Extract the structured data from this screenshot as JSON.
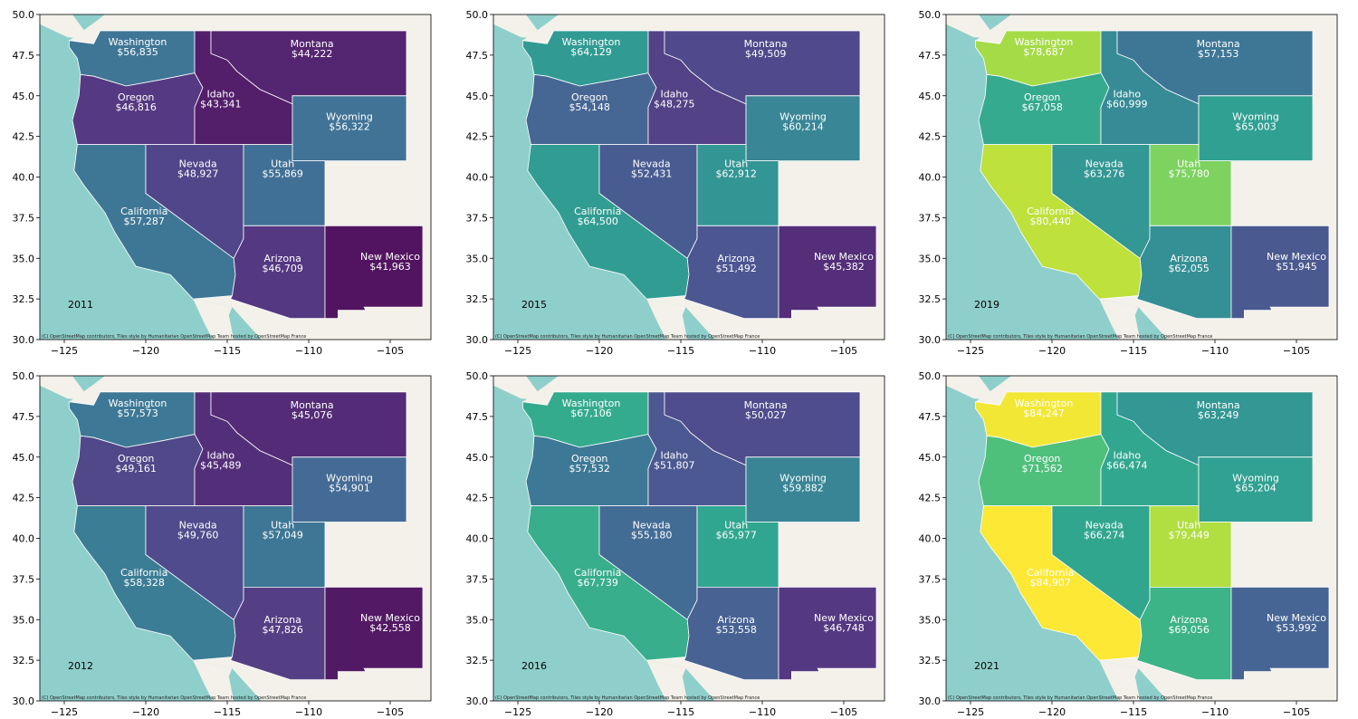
{
  "attribution": "(C) OpenStreetMap contributors, Tiles style by Humanitarian OpenStreetMap Team hosted by OpenStreetMap France",
  "axes": {
    "x_ticks": [
      "−125",
      "−120",
      "−115",
      "−110",
      "−105"
    ],
    "y_ticks": [
      "50.0",
      "47.5",
      "45.0",
      "42.5",
      "40.0",
      "37.5",
      "35.0",
      "32.5",
      "30.0"
    ]
  },
  "colors": {
    "ocean": "#8fcfcb",
    "land": "#f3f1ea",
    "border": "#ffffff",
    "viridis_stops": [
      "#440154",
      "#482878",
      "#3e4989",
      "#31688e",
      "#26828e",
      "#1f9e89",
      "#35b779",
      "#6ece58",
      "#b5de2b",
      "#fde725"
    ],
    "value_range": [
      41963,
      84907
    ]
  },
  "chart_data": {
    "type": "choropleth-map",
    "layout": "2 rows x 3 columns",
    "metric": "median household income (USD)",
    "lon_range": [
      -126.5,
      -102.5
    ],
    "lat_range": [
      30.0,
      50.0
    ],
    "panels": [
      {
        "year": "2011",
        "states": [
          {
            "name": "Washington",
            "label": "$56,835",
            "value": 56835
          },
          {
            "name": "Oregon",
            "label": "$46,816",
            "value": 46816
          },
          {
            "name": "Idaho",
            "label": "$43,341",
            "value": 43341
          },
          {
            "name": "Montana",
            "label": "$44,222",
            "value": 44222
          },
          {
            "name": "Wyoming",
            "label": "$56,322",
            "value": 56322
          },
          {
            "name": "California",
            "label": "$57,287",
            "value": 57287
          },
          {
            "name": "Nevada",
            "label": "$48,927",
            "value": 48927
          },
          {
            "name": "Utah",
            "label": "$55,869",
            "value": 55869
          },
          {
            "name": "Arizona",
            "label": "$46,709",
            "value": 46709
          },
          {
            "name": "New Mexico",
            "label": "$41,963",
            "value": 41963
          }
        ]
      },
      {
        "year": "2015",
        "states": [
          {
            "name": "Washington",
            "label": "$64,129",
            "value": 64129
          },
          {
            "name": "Oregon",
            "label": "$54,148",
            "value": 54148
          },
          {
            "name": "Idaho",
            "label": "$48,275",
            "value": 48275
          },
          {
            "name": "Montana",
            "label": "$49,509",
            "value": 49509
          },
          {
            "name": "Wyoming",
            "label": "$60,214",
            "value": 60214
          },
          {
            "name": "California",
            "label": "$64,500",
            "value": 64500
          },
          {
            "name": "Nevada",
            "label": "$52,431",
            "value": 52431
          },
          {
            "name": "Utah",
            "label": "$62,912",
            "value": 62912
          },
          {
            "name": "Arizona",
            "label": "$51,492",
            "value": 51492
          },
          {
            "name": "New Mexico",
            "label": "$45,382",
            "value": 45382
          }
        ]
      },
      {
        "year": "2019",
        "states": [
          {
            "name": "Washington",
            "label": "$78,687",
            "value": 78687
          },
          {
            "name": "Oregon",
            "label": "$67,058",
            "value": 67058
          },
          {
            "name": "Idaho",
            "label": "$60,999",
            "value": 60999
          },
          {
            "name": "Montana",
            "label": "$57,153",
            "value": 57153
          },
          {
            "name": "Wyoming",
            "label": "$65,003",
            "value": 65003
          },
          {
            "name": "California",
            "label": "$80,440",
            "value": 80440
          },
          {
            "name": "Nevada",
            "label": "$63,276",
            "value": 63276
          },
          {
            "name": "Utah",
            "label": "$75,780",
            "value": 75780
          },
          {
            "name": "Arizona",
            "label": "$62,055",
            "value": 62055
          },
          {
            "name": "New Mexico",
            "label": "$51,945",
            "value": 51945
          }
        ]
      },
      {
        "year": "2012",
        "states": [
          {
            "name": "Washington",
            "label": "$57,573",
            "value": 57573
          },
          {
            "name": "Oregon",
            "label": "$49,161",
            "value": 49161
          },
          {
            "name": "Idaho",
            "label": "$45,489",
            "value": 45489
          },
          {
            "name": "Montana",
            "label": "$45,076",
            "value": 45076
          },
          {
            "name": "Wyoming",
            "label": "$54,901",
            "value": 54901
          },
          {
            "name": "California",
            "label": "$58,328",
            "value": 58328
          },
          {
            "name": "Nevada",
            "label": "$49,760",
            "value": 49760
          },
          {
            "name": "Utah",
            "label": "$57,049",
            "value": 57049
          },
          {
            "name": "Arizona",
            "label": "$47,826",
            "value": 47826
          },
          {
            "name": "New Mexico",
            "label": "$42,558",
            "value": 42558
          }
        ]
      },
      {
        "year": "2016",
        "states": [
          {
            "name": "Washington",
            "label": "$67,106",
            "value": 67106
          },
          {
            "name": "Oregon",
            "label": "$57,532",
            "value": 57532
          },
          {
            "name": "Idaho",
            "label": "$51,807",
            "value": 51807
          },
          {
            "name": "Montana",
            "label": "$50,027",
            "value": 50027
          },
          {
            "name": "Wyoming",
            "label": "$59,882",
            "value": 59882
          },
          {
            "name": "California",
            "label": "$67,739",
            "value": 67739
          },
          {
            "name": "Nevada",
            "label": "$55,180",
            "value": 55180
          },
          {
            "name": "Utah",
            "label": "$65,977",
            "value": 65977
          },
          {
            "name": "Arizona",
            "label": "$53,558",
            "value": 53558
          },
          {
            "name": "New Mexico",
            "label": "$46,748",
            "value": 46748
          }
        ]
      },
      {
        "year": "2021",
        "states": [
          {
            "name": "Washington",
            "label": "$84,247",
            "value": 84247
          },
          {
            "name": "Oregon",
            "label": "$71,562",
            "value": 71562
          },
          {
            "name": "Idaho",
            "label": "$66,474",
            "value": 66474
          },
          {
            "name": "Montana",
            "label": "$63,249",
            "value": 63249
          },
          {
            "name": "Wyoming",
            "label": "$65,204",
            "value": 65204
          },
          {
            "name": "California",
            "label": "$84,907",
            "value": 84907
          },
          {
            "name": "Nevada",
            "label": "$66,274",
            "value": 66274
          },
          {
            "name": "Utah",
            "label": "$79,449",
            "value": 79449
          },
          {
            "name": "Arizona",
            "label": "$69,056",
            "value": 69056
          },
          {
            "name": "New Mexico",
            "label": "$53,992",
            "value": 53992
          }
        ]
      }
    ]
  }
}
